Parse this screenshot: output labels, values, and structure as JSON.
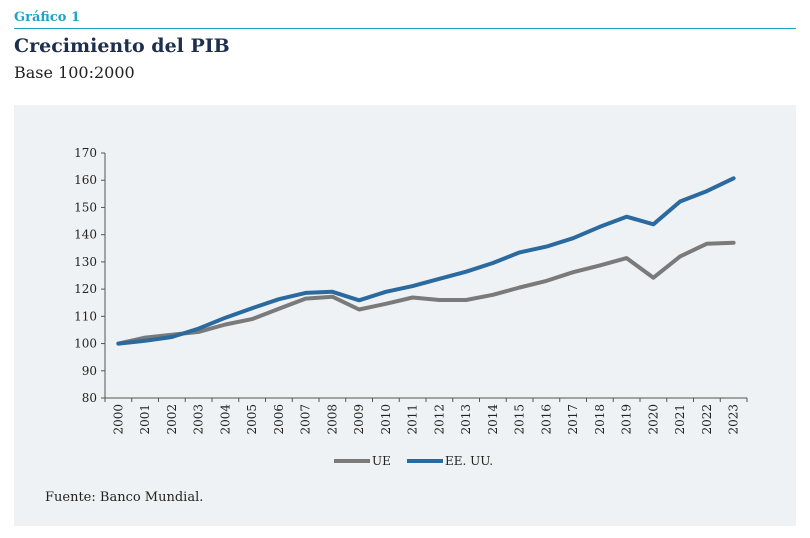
{
  "header": {
    "figure_label": "Gráfico 1",
    "title": "Crecimiento del PIB",
    "subtitle": "Base 100:2000"
  },
  "footer": {
    "source": "Fuente: Banco Mundial."
  },
  "chart_data": {
    "type": "line",
    "title": "Crecimiento del PIB",
    "subtitle": "Base 100:2000",
    "xlabel": "",
    "ylabel": "",
    "ylim": [
      80,
      170
    ],
    "yticks": [
      80,
      90,
      100,
      110,
      120,
      130,
      140,
      150,
      160,
      170
    ],
    "grid": false,
    "legend": "bottom-center",
    "x": [
      "2000",
      "2001",
      "2002",
      "2003",
      "2004",
      "2005",
      "2006",
      "2007",
      "2008",
      "2009",
      "2010",
      "2011",
      "2012",
      "2013",
      "2014",
      "2015",
      "2016",
      "2017",
      "2018",
      "2019",
      "2020",
      "2021",
      "2022",
      "2023"
    ],
    "series": [
      {
        "name": "UE",
        "color": "#7a7a7a",
        "values": [
          100,
          102.2,
          103.2,
          104.3,
          107,
          109,
          112.8,
          116.5,
          117.2,
          112.5,
          114.6,
          116.9,
          116,
          116,
          117.9,
          120.6,
          123,
          126.2,
          128.7,
          131.4,
          124.2,
          132,
          136.7,
          137
        ]
      },
      {
        "name": "EE. UU.",
        "color": "#2a6a9e",
        "values": [
          100,
          101,
          102.4,
          105.5,
          109.5,
          113,
          116.3,
          118.6,
          119,
          115.9,
          119,
          121.1,
          123.8,
          126.4,
          129.6,
          133.5,
          135.6,
          138.7,
          142.9,
          146.6,
          143.8,
          152.2,
          156,
          160.7
        ]
      }
    ]
  }
}
